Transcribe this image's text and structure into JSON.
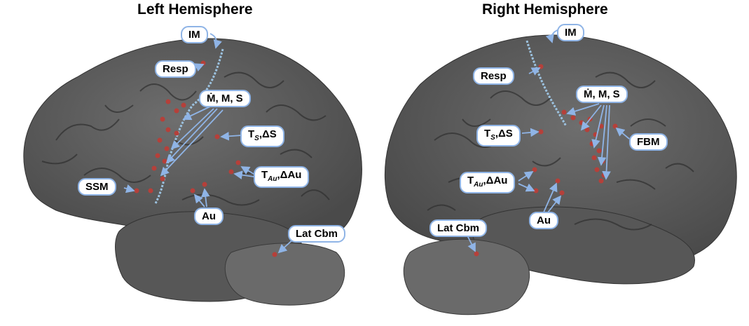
{
  "titles": {
    "left": "Left Hemisphere",
    "right": "Right Hemisphere"
  },
  "labels": {
    "left_im": "IM",
    "left_resp": "Resp",
    "left_mms": "Ṁ, M, S",
    "left_ts_main": "T",
    "left_ts_sub": "S",
    "left_ts_rest": ",ΔS",
    "left_tau_main": "T",
    "left_tau_sub": "Au",
    "left_tau_rest": ",ΔAu",
    "left_ssm": "SSM",
    "left_au": "Au",
    "left_latcbm": "Lat Cbm",
    "right_im": "IM",
    "right_resp": "Resp",
    "right_mms": "Ṁ, M, S",
    "right_ts_main": "T",
    "right_ts_sub": "S",
    "right_ts_rest": ",ΔS",
    "right_tau_main": "T",
    "right_tau_sub": "Au",
    "right_tau_rest": ",ΔAu",
    "right_fbm": "FBM",
    "right_au": "Au",
    "right_latcbm": "Lat Cbm"
  },
  "colors": {
    "brain": "#5e5e5e",
    "brain_dark": "#3f3f3f",
    "sulcus": "#2e2e2e",
    "electrode": "#b5403a",
    "arrow": "#8fb4e6",
    "central_sulcus": "#9cc2df"
  }
}
